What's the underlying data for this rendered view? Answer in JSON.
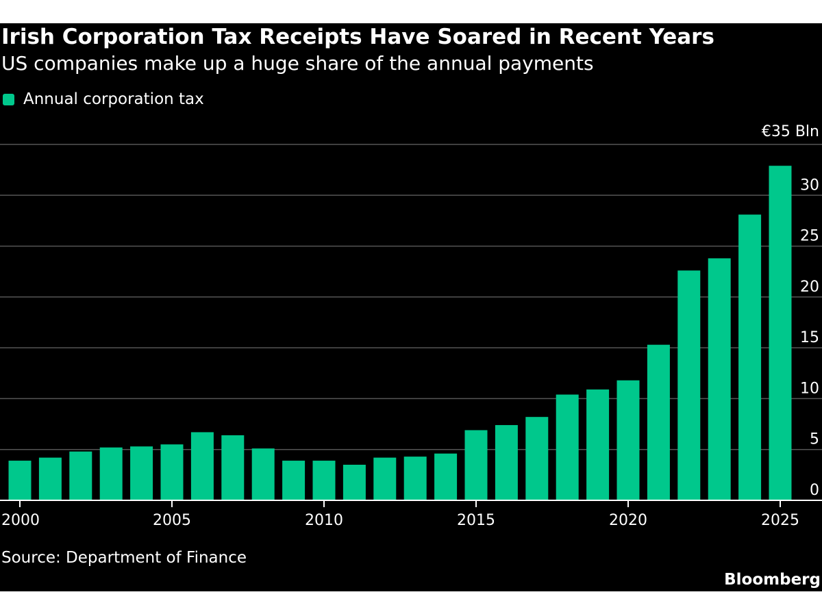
{
  "chart_data": {
    "type": "bar",
    "title": "Irish Corporation Tax Receipts Have Soared in Recent Years",
    "subtitle": "US companies make up a huge share of the annual payments",
    "legend": [
      {
        "name": "Annual corporation tax",
        "color": "#00c88c"
      }
    ],
    "legend_position": "top-left",
    "categories": [
      "2000",
      "2001",
      "2002",
      "2003",
      "2004",
      "2005",
      "2006",
      "2007",
      "2008",
      "2009",
      "2010",
      "2011",
      "2012",
      "2013",
      "2014",
      "2015",
      "2016",
      "2017",
      "2018",
      "2019",
      "2020",
      "2021",
      "2022",
      "2023",
      "2024",
      "2025"
    ],
    "values": [
      3.9,
      4.2,
      4.8,
      5.2,
      5.3,
      5.5,
      6.7,
      6.4,
      5.1,
      3.9,
      3.9,
      3.5,
      4.2,
      4.3,
      4.6,
      6.9,
      7.4,
      8.2,
      10.4,
      10.9,
      11.8,
      15.3,
      22.6,
      23.8,
      28.1,
      32.9
    ],
    "x_tick_labels": [
      "2000",
      "2005",
      "2010",
      "2015",
      "2020",
      "2025"
    ],
    "y_tick_labels": [
      "0",
      "5",
      "10",
      "15",
      "20",
      "25",
      "30",
      "€35 Bln"
    ],
    "y_ticks": [
      0,
      5,
      10,
      15,
      20,
      25,
      30,
      35
    ],
    "ylim": [
      0,
      35
    ],
    "y_axis_side": "right",
    "grid": true,
    "source": "Source: Department of Finance",
    "brand": "Bloomberg",
    "colors": {
      "background": "#000000",
      "bar": "#00c88c",
      "gridline": "#555555",
      "baseline": "#ffffff",
      "text": "#ffffff"
    }
  }
}
